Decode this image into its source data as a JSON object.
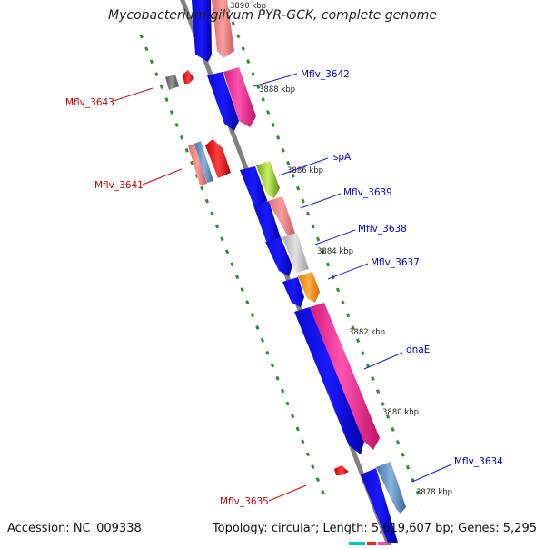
{
  "header": {
    "title": "Mycobacterium gilvum PYR-GCK, complete genome"
  },
  "footer": {
    "accession": "Accession: NC_009338",
    "topology": "Topology: circular; Length: 5,619,607 bp; Genes: 5,295"
  },
  "map": {
    "ticks": [
      "3890 kbp",
      "3888 kbp",
      "3886 kbp",
      "3884 kbp",
      "3882 kbp",
      "3880 kbp",
      "3878 kbp"
    ],
    "genes_forward": [
      "Mflv_3642",
      "lspA",
      "Mflv_3639",
      "Mflv_3638",
      "Mflv_3637",
      "dnaE",
      "Mflv_3634"
    ],
    "genes_reverse": [
      "Mflv_3643",
      "Mflv_3641",
      "Mflv_3635"
    ],
    "colors": {
      "backbone": "#808080",
      "cds_strand": "#0000ee",
      "forward_label": "#0000cc",
      "reverse_label": "#cc0000",
      "reverse_gene": "#ff0000",
      "dots": "#2e8b2e",
      "pink": "#ff3399",
      "salmon": "#f08080",
      "steelblue": "#5b8fc7",
      "lightgray": "#c8c8c8",
      "orange": "#ff8c00",
      "yellowgreen": "#9acd32",
      "darkgray": "#666666"
    }
  }
}
